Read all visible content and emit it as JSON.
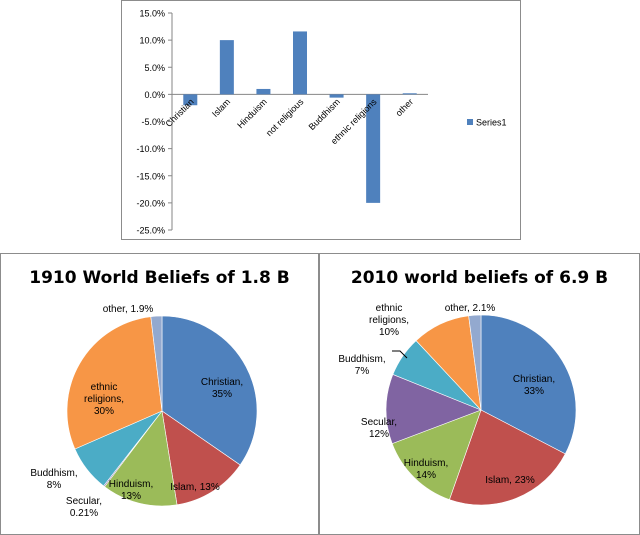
{
  "chart_data": [
    {
      "type": "bar",
      "categories": [
        "Christian",
        "Islam",
        "Hinduism",
        "not religious",
        "Buddhism",
        "ethnic religions",
        "other"
      ],
      "series": [
        {
          "name": "Series1",
          "values": [
            -2.0,
            10.0,
            1.0,
            11.6,
            -0.6,
            -20.0,
            0.2
          ]
        }
      ],
      "yticks": [
        "15.0%",
        "10.0%",
        "5.0%",
        "0.0%",
        "-5.0%",
        "-10.0%",
        "-15.0%",
        "-20.0%",
        "-25.0%"
      ],
      "ylim": [
        -25,
        15
      ],
      "color": "#4f81bd"
    },
    {
      "type": "pie",
      "title": "1910 World Beliefs of 1.8 B",
      "slices": [
        {
          "name": "Christian",
          "value": 35,
          "label": [
            "Christian,",
            "35%"
          ],
          "color": "#4f81bd"
        },
        {
          "name": "Islam",
          "value": 13,
          "label": [
            "Islam, 13%"
          ],
          "color": "#c0504d"
        },
        {
          "name": "Hinduism",
          "value": 13,
          "label": [
            "Hinduism,",
            "13%"
          ],
          "color": "#9bbb59"
        },
        {
          "name": "Secular",
          "value": 0.21,
          "label": [
            "Secular,",
            "0.21%"
          ],
          "color": "#8064a2"
        },
        {
          "name": "Buddhism",
          "value": 8,
          "label": [
            "Buddhism,",
            "8%"
          ],
          "color": "#4bacc6"
        },
        {
          "name": "ethnic religions",
          "value": 30,
          "label": [
            "ethnic",
            "religions,",
            "30%"
          ],
          "color": "#f79646"
        },
        {
          "name": "other",
          "value": 1.9,
          "label": [
            "other, 1.9%"
          ],
          "color": "#93a9cf"
        }
      ]
    },
    {
      "type": "pie",
      "title": "2010 world beliefs of 6.9 B",
      "slices": [
        {
          "name": "Christian",
          "value": 33,
          "label": [
            "Christian,",
            "33%"
          ],
          "color": "#4f81bd"
        },
        {
          "name": "Islam",
          "value": 23,
          "label": [
            "Islam, 23%"
          ],
          "color": "#c0504d"
        },
        {
          "name": "Hinduism",
          "value": 14,
          "label": [
            "Hinduism,",
            "14%"
          ],
          "color": "#9bbb59"
        },
        {
          "name": "Secular",
          "value": 12,
          "label": [
            "Secular,",
            "12%"
          ],
          "color": "#8064a2"
        },
        {
          "name": "Buddhism",
          "value": 7,
          "label": [
            "Buddhism,",
            "7%"
          ],
          "color": "#4bacc6"
        },
        {
          "name": "ethnic religions",
          "value": 10,
          "label": [
            "ethnic",
            "religions,",
            "10%"
          ],
          "color": "#f79646"
        },
        {
          "name": "other",
          "value": 2.1,
          "label": [
            "other, 2.1%"
          ],
          "color": "#93a9cf"
        }
      ]
    }
  ]
}
